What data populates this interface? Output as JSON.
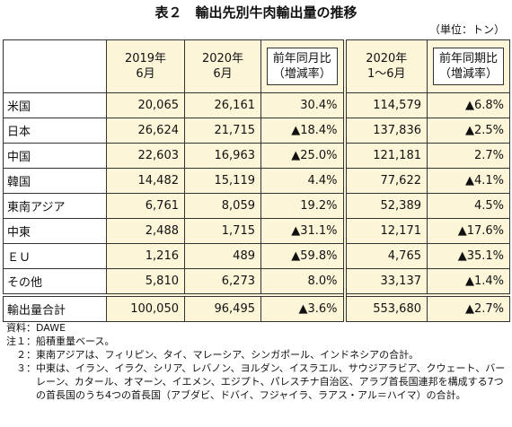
{
  "title": "表２　輸出先別牛肉輸出量の推移",
  "unit": "（単位：トン）",
  "table": {
    "header": [
      [
        "2019年",
        "6月"
      ],
      [
        "2020年",
        "6月"
      ],
      [
        "前年同月比",
        "（増減率）"
      ],
      [
        "2020年",
        "1～6月"
      ],
      [
        "前年同期比",
        "（増減率）"
      ]
    ],
    "rows": [
      [
        "米国",
        "20,065",
        "26,161",
        "30.4%",
        "114,579",
        "▲6.8%"
      ],
      [
        "日本",
        "26,624",
        "21,715",
        "▲18.4%",
        "137,836",
        "▲2.5%"
      ],
      [
        "中国",
        "22,603",
        "16,963",
        "▲25.0%",
        "121,181",
        "2.7%"
      ],
      [
        "韓国",
        "14,482",
        "15,119",
        "4.4%",
        "77,622",
        "▲4.1%"
      ],
      [
        "東南アジア",
        "6,761",
        "8,059",
        "19.2%",
        "52,389",
        "4.5%"
      ],
      [
        "中東",
        "2,488",
        "1,715",
        "▲31.1%",
        "12,171",
        "▲17.6%"
      ],
      [
        "ＥＵ",
        "1,216",
        "489",
        "▲59.8%",
        "4,765",
        "▲35.1%"
      ],
      [
        "その他",
        "5,810",
        "6,273",
        "8.0%",
        "33,137",
        "▲1.4%"
      ]
    ],
    "total": [
      "輸出量合計",
      "100,050",
      "96,495",
      "▲3.6%",
      "553,680",
      "▲2.7%"
    ]
  },
  "notes": [
    {
      "key": "資料：",
      "text": "DAWE"
    },
    {
      "key": "注１：",
      "text": "船積重量ベース。"
    },
    {
      "key": "２：",
      "text": "東南アジアは、フィリピン、タイ、マレーシア、シンガポール、インドネシアの合計。"
    },
    {
      "key": "３：",
      "text": "中東は、イラン、イラク、シリア、レバノン、ヨルダン、イスラエル、サウジアラビア、クウェート、バーレーン、カタール、オマーン、イエメン、エジプト、パレスチナ自治区、アラブ首長国連邦を構成する7つの首長国のうち4つの首長国（アブダビ、ドバイ、フジャイラ、ラアス・アル＝ハイマ）の合計。"
    }
  ]
}
